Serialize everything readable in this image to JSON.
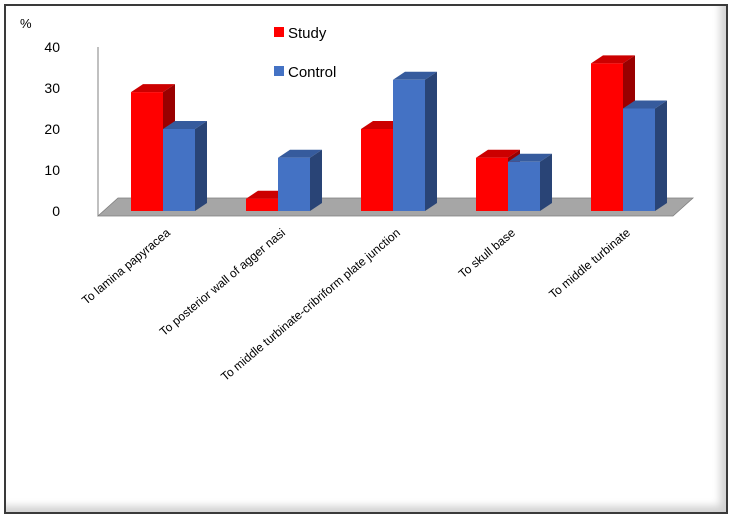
{
  "chart_data": {
    "type": "bar",
    "ylabel": "%",
    "ylim": [
      0,
      40
    ],
    "yticks": [
      0,
      10,
      20,
      30,
      40
    ],
    "categories": [
      "To lamina papyracea",
      "To posterior wall of agger nasi",
      "To middle turbinate-cribriform plate junction",
      "To skull base",
      "To middle turbinate"
    ],
    "series": [
      {
        "name": "Study",
        "color": "#ff0000",
        "values": [
          29,
          3,
          20,
          13,
          36
        ]
      },
      {
        "name": "Control",
        "color": "#4472c4",
        "values": [
          20,
          13,
          32,
          12,
          25
        ]
      }
    ],
    "legend": "top-center",
    "style": "3d-clustered-column"
  }
}
